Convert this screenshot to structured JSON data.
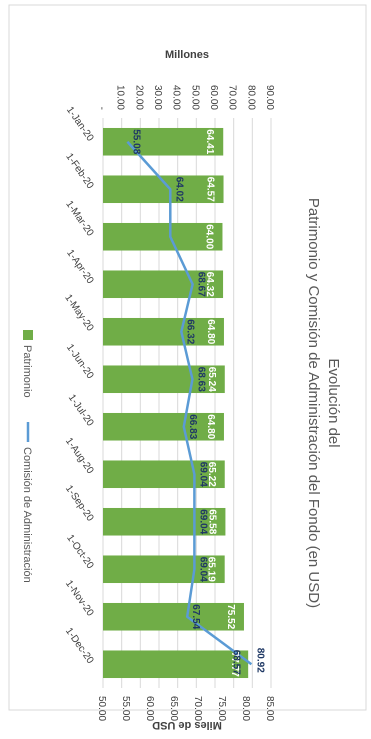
{
  "chart_data": {
    "type": "bar",
    "title": "Evolución del Patrimonio y Comisión de Administración del Fondo (en USD)",
    "primary_axis_label": "Millones",
    "secondary_axis_label": "Miles de USD",
    "primary_ticks": [
      "-",
      "10.00",
      "20.00",
      "30.00",
      "40.00",
      "50.00",
      "60.00",
      "70.00",
      "80.00",
      "90.00"
    ],
    "secondary_ticks": [
      "50.00",
      "55.00",
      "60.00",
      "65.00",
      "70.00",
      "75.00",
      "80.00",
      "85.00"
    ],
    "primary_range": [
      0,
      90
    ],
    "secondary_range": [
      50,
      85
    ],
    "categories": [
      "1-Jan-20",
      "1-Feb-20",
      "1-Mar-20",
      "1-Apr-20",
      "1-May-20",
      "1-Jun-20",
      "1-Jul-20",
      "1-Aug-20",
      "1-Sep-20",
      "1-Oct-20",
      "1-Nov-20",
      "1-Dec-20"
    ],
    "series": [
      {
        "name": "Patrimonio",
        "type": "bar",
        "color": "#70ad47",
        "values": [
          64.41,
          64.57,
          64.0,
          64.32,
          64.8,
          65.24,
          64.8,
          65.22,
          65.58,
          65.19,
          75.52,
          77.77
        ],
        "labels": [
          "64.41",
          "64.57",
          "64.00",
          "64.32",
          "64.80",
          "65.24",
          "64.80",
          "65.22",
          "65.58",
          "65.19",
          "75.52",
          "77.77"
        ]
      },
      {
        "name": "Comisión de Administración",
        "type": "line",
        "color": "#5b9bd5",
        "values": [
          55.08,
          64.02,
          64.02,
          68.67,
          66.32,
          68.63,
          66.83,
          69.04,
          69.04,
          69.04,
          67.54,
          80.92
        ],
        "labels": [
          "55.08",
          "64.02",
          "",
          "68.67",
          "66.32",
          "68.63",
          "66.83",
          "69.04",
          "69.04",
          "69.04",
          "67.54",
          "80.92"
        ],
        "extra_labels": [
          "68.57"
        ]
      }
    ],
    "legend_position": "bottom",
    "grid": true
  }
}
